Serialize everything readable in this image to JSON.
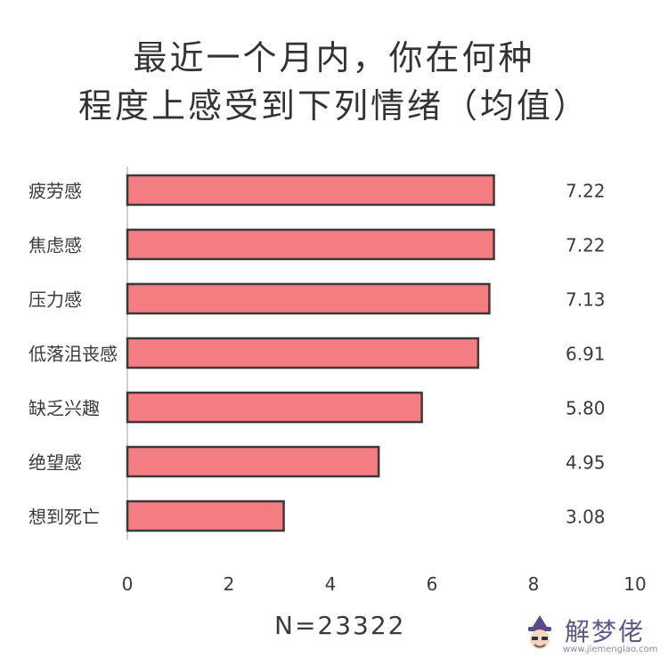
{
  "title_lines": [
    "最近一个月内，你在何种",
    "程度上感受到下列情绪（均值）"
  ],
  "note": "N=23322",
  "watermark": {
    "name": "解梦佬",
    "url": "www.jiemenglao.com"
  },
  "colors": {
    "bar_fill": "#f47d82",
    "bar_stroke": "#3a3a3a",
    "text": "#3a3a3a",
    "axis": "#cfcfcf"
  },
  "chart_data": {
    "type": "bar",
    "orientation": "horizontal",
    "title": "最近一个月内，你在何种程度上感受到下列情绪（均值）",
    "categories": [
      "疲劳感",
      "焦虑感",
      "压力感",
      "低落沮丧感",
      "缺乏兴趣",
      "绝望感",
      "想到死亡"
    ],
    "values": [
      7.22,
      7.22,
      7.13,
      6.91,
      5.8,
      4.95,
      3.08
    ],
    "value_labels": [
      "7.22",
      "7.22",
      "7.13",
      "6.91",
      "5.80",
      "4.95",
      "3.08"
    ],
    "xticks": [
      "0",
      "2",
      "4",
      "6",
      "8",
      "10"
    ],
    "xlim": [
      0,
      10
    ],
    "xlabel": "",
    "ylabel": "",
    "grid": false,
    "legend": "none"
  }
}
